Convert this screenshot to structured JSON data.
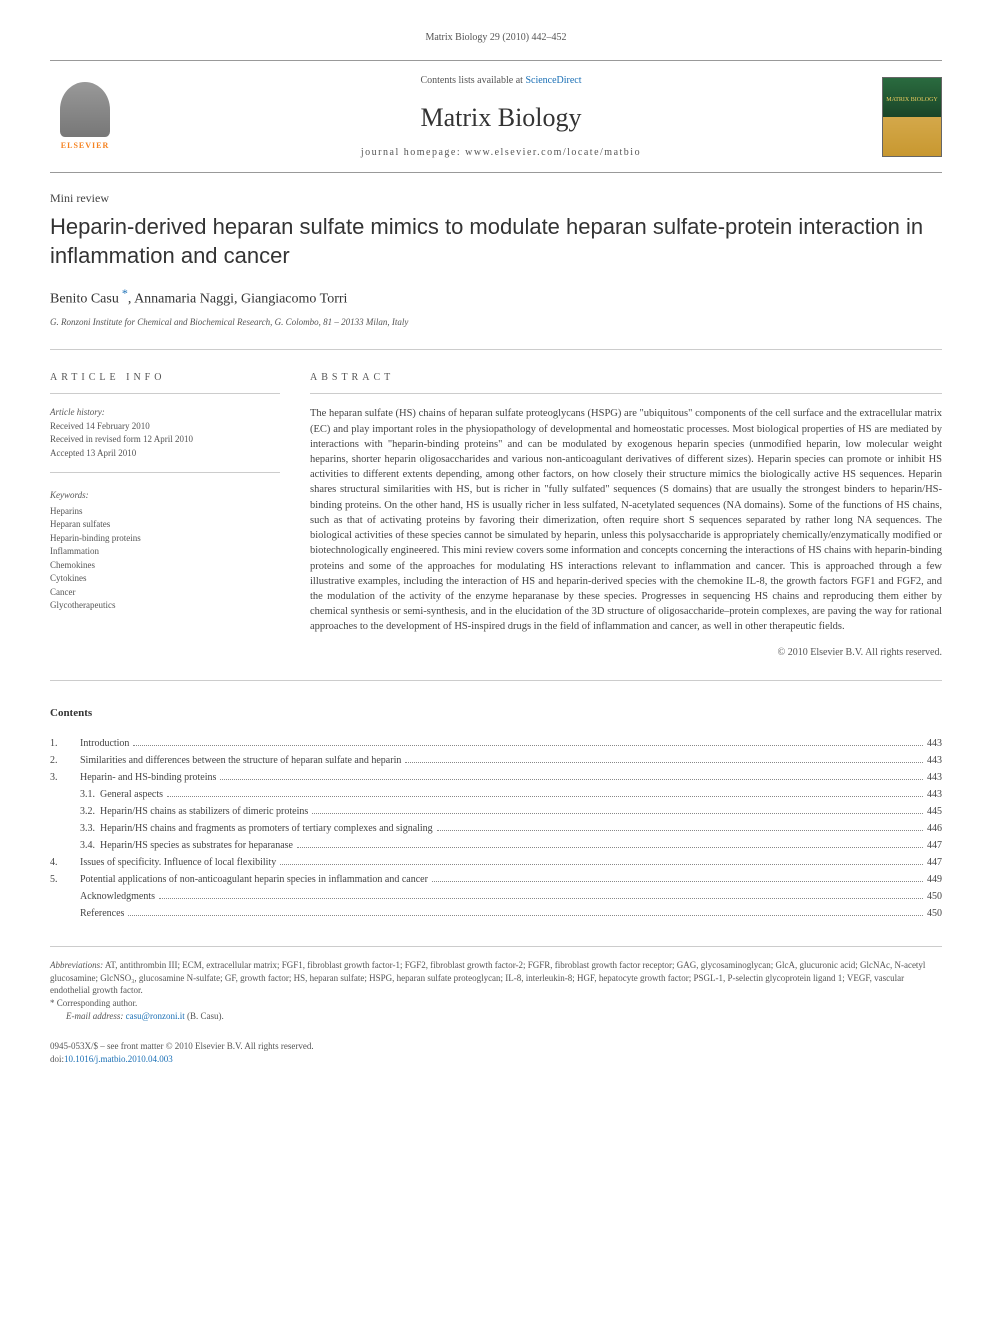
{
  "page_header": "Matrix Biology 29 (2010) 442–452",
  "masthead": {
    "contents_prefix": "Contents lists available at ",
    "contents_link": "ScienceDirect",
    "journal_title": "Matrix Biology",
    "homepage_label": "journal homepage: www.elsevier.com/locate/matbio",
    "publisher_name": "ELSEVIER",
    "cover_text": "MATRIX BIOLOGY"
  },
  "article": {
    "type": "Mini review",
    "title": "Heparin-derived heparan sulfate mimics to modulate heparan sulfate-protein interaction in inflammation and cancer",
    "authors": "Benito Casu",
    "authors_rest": ", Annamaria Naggi, Giangiacomo Torri",
    "affiliation": "G. Ronzoni Institute for Chemical and Biochemical Research, G. Colombo, 81 – 20133 Milan, Italy"
  },
  "info": {
    "heading": "ARTICLE INFO",
    "history_label": "Article history:",
    "received": "Received 14 February 2010",
    "revised": "Received in revised form 12 April 2010",
    "accepted": "Accepted 13 April 2010",
    "keywords_label": "Keywords:",
    "keywords": [
      "Heparins",
      "Heparan sulfates",
      "Heparin-binding proteins",
      "Inflammation",
      "Chemokines",
      "Cytokines",
      "Cancer",
      "Glycotherapeutics"
    ]
  },
  "abstract": {
    "heading": "ABSTRACT",
    "text": "The heparan sulfate (HS) chains of heparan sulfate proteoglycans (HSPG) are \"ubiquitous\" components of the cell surface and the extracellular matrix (EC) and play important roles in the physiopathology of developmental and homeostatic processes. Most biological properties of HS are mediated by interactions with \"heparin-binding proteins\" and can be modulated by exogenous heparin species (unmodified heparin, low molecular weight heparins, shorter heparin oligosaccharides and various non-anticoagulant derivatives of different sizes). Heparin species can promote or inhibit HS activities to different extents depending, among other factors, on how closely their structure mimics the biologically active HS sequences. Heparin shares structural similarities with HS, but is richer in \"fully sulfated\" sequences (S domains) that are usually the strongest binders to heparin/HS-binding proteins. On the other hand, HS is usually richer in less sulfated, N-acetylated sequences (NA domains). Some of the functions of HS chains, such as that of activating proteins by favoring their dimerization, often require short S sequences separated by rather long NA sequences. The biological activities of these species cannot be simulated by heparin, unless this polysaccharide is appropriately chemically/enzymatically modified or biotechnologically engineered. This mini review covers some information and concepts concerning the interactions of HS chains with heparin-binding proteins and some of the approaches for modulating HS interactions relevant to inflammation and cancer. This is approached through a few illustrative examples, including the interaction of HS and heparin-derived species with the chemokine IL-8, the growth factors FGF1 and FGF2, and the modulation of the activity of the enzyme heparanase by these species. Progresses in sequencing HS chains and reproducing them either by chemical synthesis or semi-synthesis, and in the elucidation of the 3D structure of oligosaccharide–protein complexes, are paving the way for rational approaches to the development of HS-inspired drugs in the field of inflammation and cancer, as well in other therapeutic fields.",
    "copyright": "© 2010 Elsevier B.V. All rights reserved."
  },
  "contents": {
    "heading": "Contents",
    "items": [
      {
        "num": "1.",
        "title": "Introduction",
        "page": "443"
      },
      {
        "num": "2.",
        "title": "Similarities and differences between the structure of heparan sulfate and heparin",
        "page": "443"
      },
      {
        "num": "3.",
        "title": "Heparin- and HS-binding proteins",
        "page": "443"
      },
      {
        "sub": "3.1.",
        "title": "General aspects",
        "page": "443"
      },
      {
        "sub": "3.2.",
        "title": "Heparin/HS chains as stabilizers of dimeric proteins",
        "page": "445"
      },
      {
        "sub": "3.3.",
        "title": "Heparin/HS chains and fragments as promoters of tertiary complexes and signaling",
        "page": "446"
      },
      {
        "sub": "3.4.",
        "title": "Heparin/HS species as substrates for heparanase",
        "page": "447"
      },
      {
        "num": "4.",
        "title": "Issues of specificity. Influence of local flexibility",
        "page": "447"
      },
      {
        "num": "5.",
        "title": "Potential applications of non-anticoagulant heparin species in inflammation and cancer",
        "page": "449"
      },
      {
        "num": "",
        "title": "Acknowledgments",
        "page": "450"
      },
      {
        "num": "",
        "title": "References",
        "page": "450"
      }
    ]
  },
  "footnotes": {
    "abbrev_label": "Abbreviations:",
    "abbrev_text": " AT, antithrombin III; ECM, extracellular matrix; FGF1, fibroblast growth factor-1; FGF2, fibroblast growth factor-2; FGFR, fibroblast growth factor receptor; GAG, glycosaminoglycan; GlcA, glucuronic acid; GlcNAc, N-acetyl glucosamine; GlcNSO₃, glucosamine N-sulfate; GF, growth factor; HS, heparan sulfate; HSPG, heparan sulfate proteoglycan; IL-8, interleukin-8; HGF, hepatocyte growth factor; PSGL-1, P-selectin glycoprotein ligand 1; VEGF, vascular endothelial growth factor.",
    "corresponding": "Corresponding author.",
    "email_label": "E-mail address:",
    "email": "casu@ronzoni.it",
    "email_name": " (B. Casu)."
  },
  "footer": {
    "issn_line": "0945-053X/$ – see front matter © 2010 Elsevier B.V. All rights reserved.",
    "doi_label": "doi:",
    "doi": "10.1016/j.matbio.2010.04.003"
  },
  "colors": {
    "link": "#1a6fb5",
    "accent_orange": "#f58220",
    "text": "#333333",
    "muted": "#555555",
    "rule": "#cccccc"
  },
  "typography": {
    "base_font": "Georgia, Times New Roman, serif",
    "title_font": "Arial, sans-serif",
    "base_size_pt": 10,
    "title_size_pt": 20,
    "journal_title_size_pt": 24
  }
}
